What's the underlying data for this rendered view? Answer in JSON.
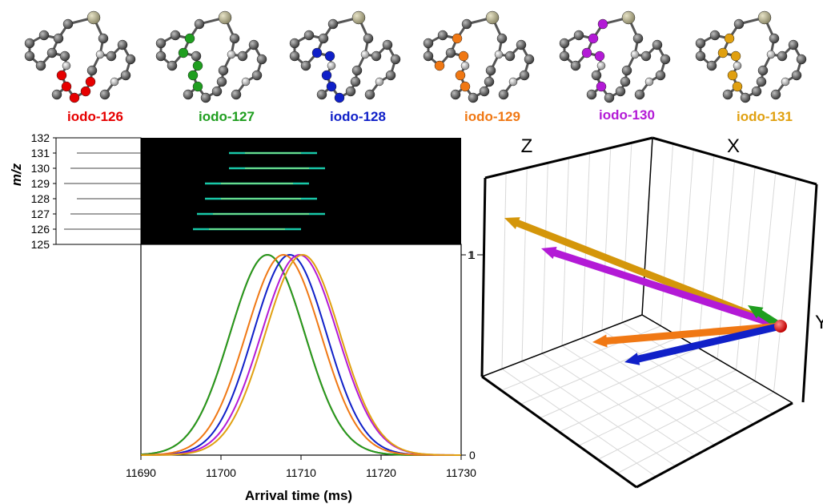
{
  "molecules": [
    {
      "label": "iodo-126",
      "color": "#e60000"
    },
    {
      "label": "iodo-127",
      "color": "#1f9e1f"
    },
    {
      "label": "iodo-128",
      "color": "#1020c8"
    },
    {
      "label": "iodo-129",
      "color": "#f07814"
    },
    {
      "label": "iodo-130",
      "color": "#b31ad6"
    },
    {
      "label": "iodo-131",
      "color": "#e0a010"
    }
  ],
  "chart_data": [
    {
      "type": "heatmap",
      "ylabel": "m/z",
      "yticks": [
        "125",
        "126",
        "127",
        "128",
        "129",
        "130",
        "131",
        "132"
      ],
      "streaks": [
        {
          "mz": 126,
          "start": 11696.5,
          "end": 11710
        },
        {
          "mz": 127,
          "start": 11697,
          "end": 11713
        },
        {
          "mz": 128,
          "start": 11698,
          "end": 11712
        },
        {
          "mz": 129,
          "start": 11698,
          "end": 11711
        },
        {
          "mz": 130,
          "start": 11701,
          "end": 11713
        },
        {
          "mz": 131,
          "start": 11701,
          "end": 11712
        }
      ]
    },
    {
      "type": "line",
      "xlabel": "Arrival time (ms)",
      "xlim": [
        11690,
        11730
      ],
      "ylim": [
        0,
        1
      ],
      "xticks": [
        "11690",
        "11700",
        "11710",
        "11720",
        "11730"
      ],
      "yticks_right": [
        "0",
        "1"
      ],
      "series": [
        {
          "molecule": "iodo-126",
          "color": "#e60000",
          "peak": 11705.8,
          "fwhm": 11.0
        },
        {
          "molecule": "iodo-127",
          "color": "#1f9e1f",
          "peak": 11705.8,
          "fwhm": 11.0
        },
        {
          "molecule": "iodo-128",
          "color": "#1020c8",
          "peak": 11708.6,
          "fwhm": 10.8
        },
        {
          "molecule": "iodo-129",
          "color": "#f07814",
          "peak": 11707.8,
          "fwhm": 11.0
        },
        {
          "molecule": "iodo-130",
          "color": "#b31ad6",
          "peak": 11709.8,
          "fwhm": 11.2
        },
        {
          "molecule": "iodo-131",
          "color": "#e0a010",
          "peak": 11710.2,
          "fwhm": 11.0
        }
      ]
    },
    {
      "type": "scatter",
      "axes": [
        "Z",
        "X",
        "Y"
      ],
      "ytick": "1",
      "vectors": [
        {
          "molecule": "iodo-131",
          "color": "#d4960a"
        },
        {
          "molecule": "iodo-130",
          "color": "#b31ad6"
        },
        {
          "molecule": "iodo-127",
          "color": "#1f9e1f"
        },
        {
          "molecule": "iodo-129",
          "color": "#f07814"
        },
        {
          "molecule": "iodo-128",
          "color": "#1020c8"
        },
        {
          "molecule": "iodo-126",
          "color": "#e60000"
        }
      ]
    }
  ]
}
